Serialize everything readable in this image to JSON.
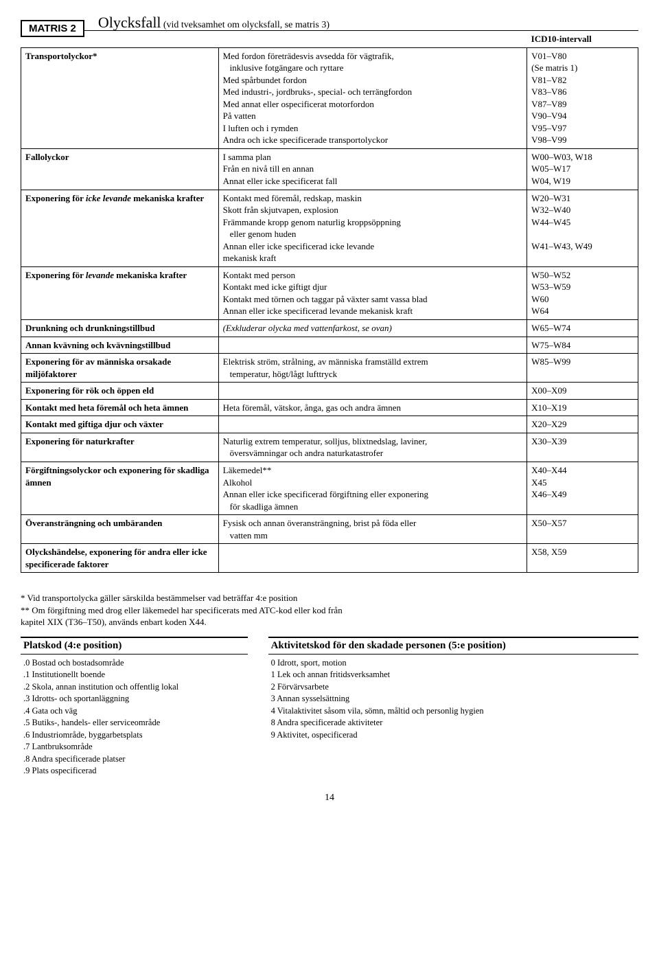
{
  "header": {
    "matris_label": "MATRIS 2",
    "title": "Olycksfall",
    "subtitle": "(vid tveksamhet om olycksfall, se matris 3)",
    "icd_heading": "ICD10-intervall"
  },
  "rows": [
    {
      "category": "Transportolyckor*",
      "lines": [
        {
          "desc": "Med fordon företrädesvis avsedda för vägtrafik,",
          "code": "V01–V80"
        },
        {
          "desc_indent": "inklusive fotgängare och ryttare",
          "code": "(Se matris 1)"
        },
        {
          "desc": "Med spårbundet fordon",
          "code": "V81–V82"
        },
        {
          "desc": "Med industri-, jordbruks-, special- och terrängfordon",
          "code": "V83–V86"
        },
        {
          "desc": "Med annat eller ospecificerat motorfordon",
          "code": "V87–V89"
        },
        {
          "desc": "På vatten",
          "code": "V90–V94"
        },
        {
          "desc": "I luften och i rymden",
          "code": "V95–V97"
        },
        {
          "desc": "Andra och icke specificerade transportolyckor",
          "code": "V98–V99"
        }
      ]
    },
    {
      "category": "Fallolyckor",
      "lines": [
        {
          "desc": "I samma plan",
          "code": "W00–W03, W18"
        },
        {
          "desc": "Från en nivå till en annan",
          "code": "W05–W17"
        },
        {
          "desc": "Annat eller icke specificerat fall",
          "code": "W04, W19"
        }
      ]
    },
    {
      "category_html": "Exponering för <span class=\"italic\">icke levande</span> mekaniska krafter",
      "lines": [
        {
          "desc": "Kontakt med föremål, redskap, maskin",
          "code": "W20–W31"
        },
        {
          "desc": "Skott från skjutvapen, explosion",
          "code": "W32–W40"
        },
        {
          "desc": "Främmande kropp genom naturlig kroppsöppning",
          "code": "W44–W45"
        },
        {
          "desc_indent": "eller genom huden",
          "code": ""
        },
        {
          "desc": "Annan eller icke specificerad icke levande",
          "code": "W41–W43, W49"
        },
        {
          "desc": "mekanisk kraft",
          "code": ""
        }
      ]
    },
    {
      "category_html": "Exponering för <span class=\"italic\">levande</span> mekaniska krafter",
      "lines": [
        {
          "desc": "Kontakt med person",
          "code": "W50–W52"
        },
        {
          "desc": "Kontakt med icke giftigt djur",
          "code": "W53–W59"
        },
        {
          "desc": "Kontakt med törnen och taggar på växter samt vassa blad",
          "code": "W60"
        },
        {
          "desc": "Annan eller icke specificerad levande mekanisk kraft",
          "code": "W64"
        }
      ]
    },
    {
      "category": "Drunkning och drunkningstillbud",
      "lines": [
        {
          "desc_html": "<span class=\"italic\">(Exkluderar olycka med vattenfarkost, se ovan)</span>",
          "code": "W65–W74"
        }
      ]
    },
    {
      "category": "Annan kvävning och kvävningstillbud",
      "lines": [
        {
          "desc": "",
          "code": "W75–W84"
        }
      ]
    },
    {
      "category": "Exponering för av människa orsakade miljöfaktorer",
      "lines": [
        {
          "desc": "Elektrisk ström, strålning, av människa framställd extrem",
          "code": "W85–W99"
        },
        {
          "desc_indent": "temperatur, högt/lågt lufttryck",
          "code": ""
        }
      ]
    },
    {
      "category": "Exponering för rök och öppen eld",
      "lines": [
        {
          "desc": "",
          "code": "X00–X09"
        }
      ]
    },
    {
      "category": "Kontakt med heta föremål och heta ämnen",
      "lines": [
        {
          "desc": "Heta föremål, vätskor, ånga, gas och andra ämnen",
          "code": "X10–X19"
        }
      ]
    },
    {
      "category": "Kontakt med giftiga djur och växter",
      "lines": [
        {
          "desc": "",
          "code": "X20–X29"
        }
      ]
    },
    {
      "category": "Exponering för naturkrafter",
      "lines": [
        {
          "desc": "Naturlig extrem temperatur, solljus, blixtnedslag, laviner,",
          "code": "X30–X39"
        },
        {
          "desc_indent": "översvämningar och andra naturkatastrofer",
          "code": ""
        }
      ]
    },
    {
      "category": "Förgiftningsolyckor och exponering för skadliga ämnen",
      "lines": [
        {
          "desc": "Läkemedel**",
          "code": "X40–X44"
        },
        {
          "desc": "Alkohol",
          "code": "X45"
        },
        {
          "desc": "Annan eller icke specificerad förgiftning eller exponering",
          "code": "X46–X49"
        },
        {
          "desc_indent": "för skadliga ämnen",
          "code": ""
        }
      ]
    },
    {
      "category": "Överansträngning och umbäranden",
      "lines": [
        {
          "desc": "Fysisk och annan överansträngning, brist på föda eller",
          "code": "X50–X57"
        },
        {
          "desc_indent": "vatten mm",
          "code": ""
        }
      ]
    },
    {
      "category": "Olyckshändelse, exponering för andra eller icke specificerade faktorer",
      "lines": [
        {
          "desc": "",
          "code": "X58, X59"
        }
      ]
    }
  ],
  "notes": {
    "n1": "* Vid transportolycka gäller särskilda bestämmelser vad beträffar 4:e position",
    "n2": "** Om förgiftning med drog eller läkemedel har specificerats med ATC-kod eller kod från",
    "n3": "kapitel XIX (T36–T50), används enbart koden X44."
  },
  "platskod": {
    "title": "Platskod  (4:e position)",
    "items": [
      ".0 Bostad och bostadsområde",
      ".1 Institutionellt boende",
      ".2 Skola, annan institution och offentlig lokal",
      ".3 Idrotts- och sportanläggning",
      ".4 Gata och väg",
      ".5 Butiks-, handels- eller serviceområde",
      ".6 Industriområde, byggarbetsplats",
      ".7 Lantbruksområde",
      ".8 Andra specificerade platser",
      ".9 Plats ospecificerad"
    ]
  },
  "aktivitet": {
    "title": "Aktivitetskod för den skadade personen  (5:e position)",
    "items": [
      "0 Idrott, sport, motion",
      "1 Lek och annan fritidsverksamhet",
      "2 Förvärvsarbete",
      "3 Annan sysselsättning",
      "4 Vitalaktivitet såsom vila, sömn, måltid och personlig hygien",
      "8 Andra specificerade aktiviteter",
      "9 Aktivitet, ospecificerad"
    ]
  },
  "page_number": "14"
}
